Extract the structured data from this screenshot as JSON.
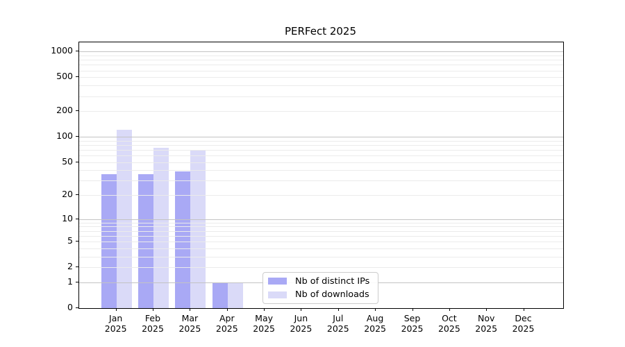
{
  "chart_data": {
    "type": "bar",
    "title": "PERFect 2025",
    "categories": [
      {
        "month": "Jan",
        "year": "2025"
      },
      {
        "month": "Feb",
        "year": "2025"
      },
      {
        "month": "Mar",
        "year": "2025"
      },
      {
        "month": "Apr",
        "year": "2025"
      },
      {
        "month": "May",
        "year": "2025"
      },
      {
        "month": "Jun",
        "year": "2025"
      },
      {
        "month": "Jul",
        "year": "2025"
      },
      {
        "month": "Aug",
        "year": "2025"
      },
      {
        "month": "Sep",
        "year": "2025"
      },
      {
        "month": "Oct",
        "year": "2025"
      },
      {
        "month": "Nov",
        "year": "2025"
      },
      {
        "month": "Dec",
        "year": "2025"
      }
    ],
    "series": [
      {
        "name": "Nb of distinct IPs",
        "color": "#a9a9f5",
        "values": [
          36,
          36,
          39,
          1,
          0,
          0,
          0,
          0,
          0,
          0,
          0,
          0
        ]
      },
      {
        "name": "Nb of downloads",
        "color": "#dadaf8",
        "values": [
          120,
          74,
          70,
          1,
          0,
          0,
          0,
          0,
          0,
          0,
          0,
          0
        ]
      }
    ],
    "y_axis": {
      "scale": "symlog-log1p",
      "ticks": [
        0,
        1,
        2,
        5,
        10,
        20,
        50,
        100,
        200,
        500,
        1000
      ],
      "ylim": [
        0,
        1283
      ]
    },
    "x_axis": {
      "label_lines": 2
    },
    "grid": {
      "horizontal": true,
      "major_values": [
        1,
        10,
        100,
        1000
      ],
      "minor_multipliers": [
        2,
        3,
        4,
        5,
        6,
        7,
        8,
        9
      ],
      "major_color": "#c3c3c3",
      "minor_color": "#ebebeb"
    },
    "legend": {
      "position": "inside-bottom-center"
    }
  }
}
